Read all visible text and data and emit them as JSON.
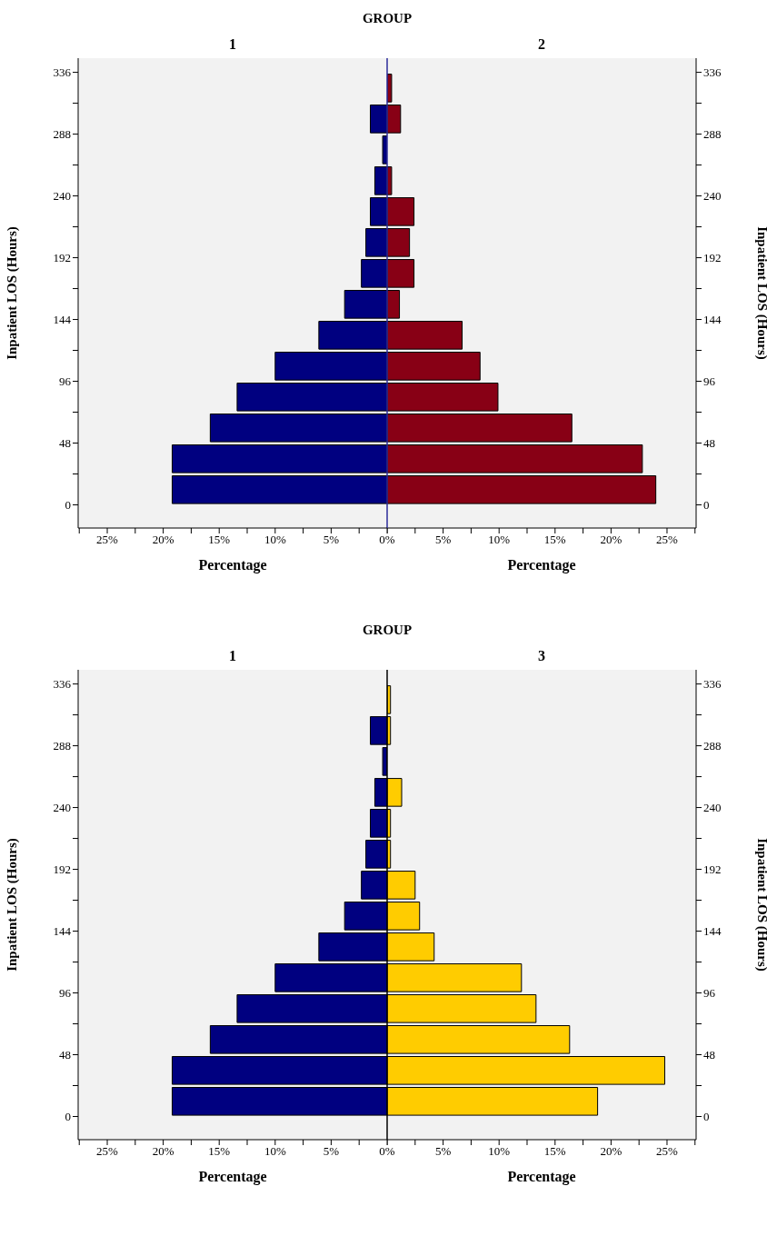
{
  "chart_data": [
    {
      "type": "histogram",
      "orientation": "horizontal",
      "title": "GROUP",
      "subtitle": "1",
      "xlabel": "Percentage",
      "ylabel": "Inpatient LOS (Hours)",
      "color": "#000080",
      "bins": [
        0,
        24,
        48,
        72,
        96,
        120,
        144,
        168,
        192,
        216,
        240,
        264,
        288,
        312,
        336
      ],
      "values": [
        19.2,
        19.2,
        15.8,
        13.4,
        10.0,
        6.1,
        3.8,
        2.3,
        1.9,
        1.5,
        1.1,
        0.4,
        1.5,
        0
      ],
      "xlim": [
        27.6,
        0
      ],
      "xticks": [
        {
          "value": 27.5,
          "label": null
        },
        {
          "value": 25,
          "label": "25%"
        },
        {
          "value": 22.5,
          "label": null
        },
        {
          "value": 20,
          "label": "20%"
        },
        {
          "value": 17.5,
          "label": null
        },
        {
          "value": 15,
          "label": "15%"
        },
        {
          "value": 12.5,
          "label": null
        },
        {
          "value": 10,
          "label": "10%"
        },
        {
          "value": 7.5,
          "label": null
        },
        {
          "value": 5,
          "label": "5%"
        },
        {
          "value": 2.5,
          "label": null
        },
        {
          "value": 0,
          "label": "0%"
        }
      ],
      "ylim": [
        -18,
        347
      ],
      "yticks": [
        0,
        {
          "value": 24,
          "label": null
        },
        48,
        {
          "value": 72,
          "label": null
        },
        96,
        {
          "value": 120,
          "label": null
        },
        144,
        {
          "value": 168,
          "label": null
        },
        192,
        {
          "value": 216,
          "label": null
        },
        240,
        {
          "value": 264,
          "label": null
        },
        288,
        {
          "value": 312,
          "label": null
        },
        336
      ],
      "ref_lines": [
        {
          "axis": "x",
          "value": 0,
          "color": "#2b2b9a"
        }
      ]
    },
    {
      "type": "histogram",
      "orientation": "horizontal",
      "subtitle": "2",
      "xlabel": "Percentage",
      "ylabel": "Inpatient LOS (Hours)",
      "color": "#880015",
      "bins": [
        0,
        24,
        48,
        72,
        96,
        120,
        144,
        168,
        192,
        216,
        240,
        264,
        288,
        312,
        336
      ],
      "values": [
        24.0,
        22.8,
        16.5,
        9.9,
        8.3,
        6.7,
        1.1,
        2.4,
        2.0,
        2.4,
        0.4,
        0,
        1.2,
        0.4
      ],
      "xlim": [
        0,
        27.6
      ],
      "xticks": [
        {
          "value": 0,
          "label": null
        },
        {
          "value": 2.5,
          "label": null
        },
        {
          "value": 5,
          "label": "5%"
        },
        {
          "value": 7.5,
          "label": null
        },
        {
          "value": 10,
          "label": "10%"
        },
        {
          "value": 12.5,
          "label": null
        },
        {
          "value": 15,
          "label": "15%"
        },
        {
          "value": 17.5,
          "label": null
        },
        {
          "value": 20,
          "label": "20%"
        },
        {
          "value": 22.5,
          "label": null
        },
        {
          "value": 25,
          "label": "25%"
        },
        {
          "value": 27.5,
          "label": null
        }
      ],
      "ylim": [
        -18,
        347
      ],
      "yticks": [
        0,
        {
          "value": 24,
          "label": null
        },
        48,
        {
          "value": 72,
          "label": null
        },
        96,
        {
          "value": 120,
          "label": null
        },
        144,
        {
          "value": 168,
          "label": null
        },
        192,
        {
          "value": 216,
          "label": null
        },
        240,
        {
          "value": 264,
          "label": null
        },
        288,
        {
          "value": 312,
          "label": null
        },
        336
      ]
    },
    {
      "type": "histogram",
      "orientation": "horizontal",
      "title": "GROUP",
      "subtitle": "1",
      "xlabel": "Percentage",
      "ylabel": "Inpatient LOS (Hours)",
      "color": "#000080",
      "bins": [
        0,
        24,
        48,
        72,
        96,
        120,
        144,
        168,
        192,
        216,
        240,
        264,
        288,
        312,
        336
      ],
      "values": [
        19.2,
        19.2,
        15.8,
        13.4,
        10.0,
        6.1,
        3.8,
        2.3,
        1.9,
        1.5,
        1.1,
        0.4,
        1.5,
        0
      ],
      "xlim": [
        27.6,
        0
      ],
      "xticks": [
        {
          "value": 27.5,
          "label": null
        },
        {
          "value": 25,
          "label": "25%"
        },
        {
          "value": 22.5,
          "label": null
        },
        {
          "value": 20,
          "label": "20%"
        },
        {
          "value": 17.5,
          "label": null
        },
        {
          "value": 15,
          "label": "15%"
        },
        {
          "value": 12.5,
          "label": null
        },
        {
          "value": 10,
          "label": "10%"
        },
        {
          "value": 7.5,
          "label": null
        },
        {
          "value": 5,
          "label": "5%"
        },
        {
          "value": 2.5,
          "label": null
        },
        {
          "value": 0,
          "label": "0%"
        }
      ],
      "ylim": [
        -18,
        347
      ],
      "yticks": [
        0,
        {
          "value": 24,
          "label": null
        },
        48,
        {
          "value": 72,
          "label": null
        },
        96,
        {
          "value": 120,
          "label": null
        },
        144,
        {
          "value": 168,
          "label": null
        },
        192,
        {
          "value": 216,
          "label": null
        },
        240,
        {
          "value": 264,
          "label": null
        },
        288,
        {
          "value": 312,
          "label": null
        },
        336
      ],
      "ref_lines": [
        {
          "axis": "x",
          "value": 0,
          "color": "#000000"
        }
      ]
    },
    {
      "type": "histogram",
      "orientation": "horizontal",
      "subtitle": "3",
      "xlabel": "Percentage",
      "ylabel": "Inpatient LOS (Hours)",
      "color": "#ffcc00",
      "bins": [
        0,
        24,
        48,
        72,
        96,
        120,
        144,
        168,
        192,
        216,
        240,
        264,
        288,
        312,
        336
      ],
      "values": [
        18.8,
        24.8,
        16.3,
        13.3,
        12.0,
        4.2,
        2.9,
        2.5,
        0.3,
        0.3,
        1.3,
        0,
        0.3,
        0.3
      ],
      "xlim": [
        0,
        27.6
      ],
      "xticks": [
        {
          "value": 0,
          "label": null
        },
        {
          "value": 2.5,
          "label": null
        },
        {
          "value": 5,
          "label": "5%"
        },
        {
          "value": 7.5,
          "label": null
        },
        {
          "value": 10,
          "label": "10%"
        },
        {
          "value": 12.5,
          "label": null
        },
        {
          "value": 15,
          "label": "15%"
        },
        {
          "value": 17.5,
          "label": null
        },
        {
          "value": 20,
          "label": "20%"
        },
        {
          "value": 22.5,
          "label": null
        },
        {
          "value": 25,
          "label": "25%"
        },
        {
          "value": 27.5,
          "label": null
        }
      ],
      "ylim": [
        -18,
        347
      ],
      "yticks": [
        0,
        {
          "value": 24,
          "label": null
        },
        48,
        {
          "value": 72,
          "label": null
        },
        96,
        {
          "value": 120,
          "label": null
        },
        144,
        {
          "value": 168,
          "label": null
        },
        192,
        {
          "value": 216,
          "label": null
        },
        240,
        {
          "value": 264,
          "label": null
        },
        288,
        {
          "value": 312,
          "label": null
        },
        336
      ]
    }
  ]
}
